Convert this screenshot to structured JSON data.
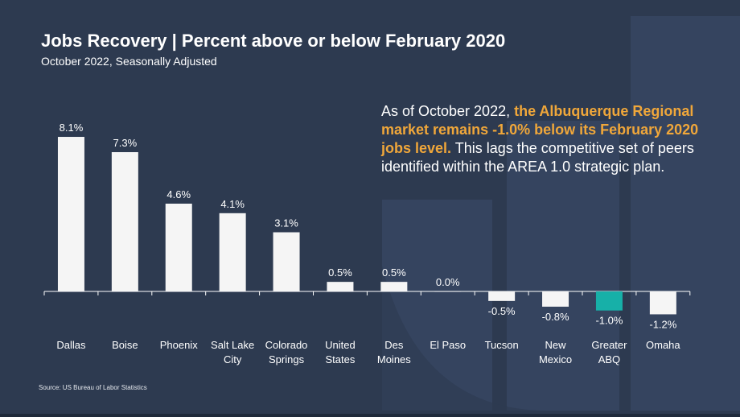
{
  "header": {
    "title": "Jobs Recovery | Percent above or below February 2020",
    "subtitle": "October 2022, Seasonally Adjusted"
  },
  "callout": {
    "text_before": "As of October 2022, ",
    "highlight": "the Albuquerque Regional market remains -1.0% below its February 2020 jobs level.",
    "text_after": " This lags the competitive set of peers identified within the AREA 1.0 strategic plan."
  },
  "footer": {
    "source": "Source: US Bureau of Labor Statistics"
  },
  "colors": {
    "background": "#2d3a50",
    "bar_default": "#f5f5f5",
    "bar_highlight": "#17b0a8",
    "highlight_text": "#f0a73a"
  },
  "chart_data": {
    "type": "bar",
    "categories": [
      [
        "Dallas"
      ],
      [
        "Boise"
      ],
      [
        "Phoenix"
      ],
      [
        "Salt Lake",
        "City"
      ],
      [
        "Colorado",
        "Springs"
      ],
      [
        "United",
        "States"
      ],
      [
        "Des",
        "Moines"
      ],
      [
        "El Paso"
      ],
      [
        "Tucson"
      ],
      [
        "New",
        "Mexico"
      ],
      [
        "Greater",
        "ABQ"
      ],
      [
        "Omaha"
      ]
    ],
    "values": [
      8.1,
      7.3,
      4.6,
      4.1,
      3.1,
      0.5,
      0.5,
      0.0,
      -0.5,
      -0.8,
      -1.0,
      -1.2
    ],
    "labels": [
      "8.1%",
      "7.3%",
      "4.6%",
      "4.1%",
      "3.1%",
      "0.5%",
      "0.5%",
      "0.0%",
      "-0.5%",
      "-0.8%",
      "-1.0%",
      "-1.2%"
    ],
    "highlight_index": 10,
    "ylim": [
      -1.2,
      8.1
    ],
    "grid": false,
    "legend": "none",
    "title": "",
    "xlabel": "",
    "ylabel": ""
  }
}
